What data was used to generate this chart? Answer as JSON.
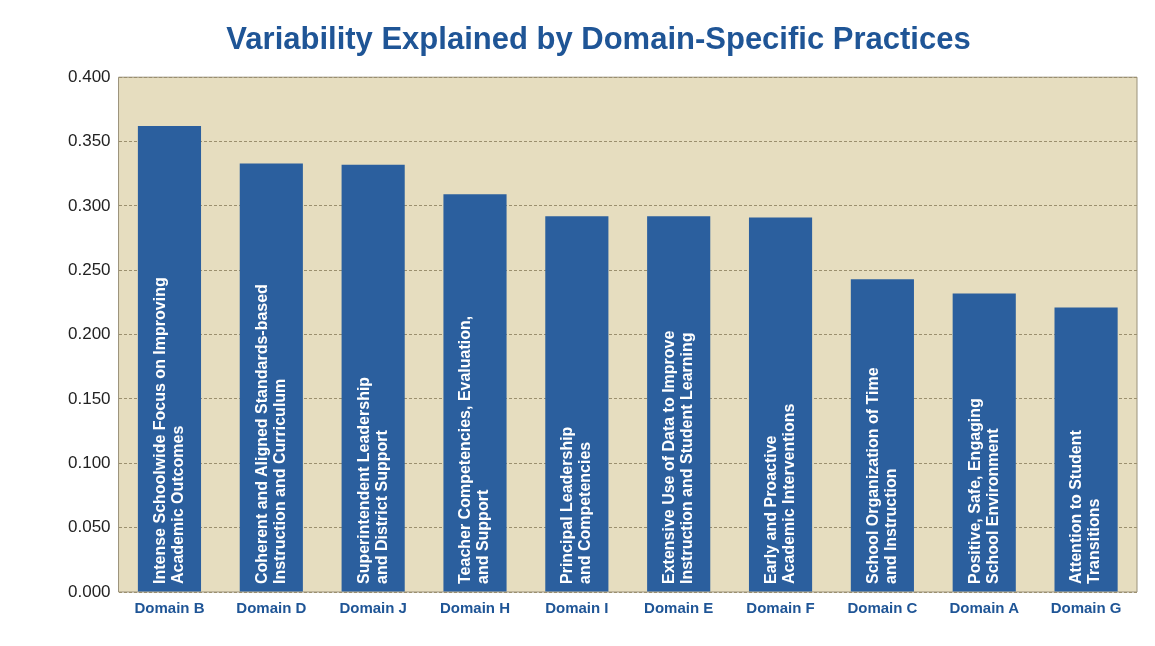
{
  "chart_data": {
    "type": "bar",
    "title": "Variability Explained by Domain-Specific Practices",
    "categories": [
      "Domain B",
      "Domain D",
      "Domain J",
      "Domain H",
      "Domain I",
      "Domain E",
      "Domain F",
      "Domain C",
      "Domain A",
      "Domain G"
    ],
    "values": [
      0.362,
      0.333,
      0.332,
      0.309,
      0.292,
      0.292,
      0.291,
      0.243,
      0.232,
      0.221
    ],
    "color": "#2b5f9e",
    "ylim": [
      0,
      0.4
    ],
    "yticks": [
      {
        "value": 0,
        "label": "0.000"
      },
      {
        "value": 0.05,
        "label": "0.050"
      },
      {
        "value": 0.1,
        "label": "0.100"
      },
      {
        "value": 0.15,
        "label": "0.150"
      },
      {
        "value": 0.2,
        "label": "0.200"
      },
      {
        "value": 0.25,
        "label": "0.250"
      },
      {
        "value": 0.3,
        "label": "0.300"
      },
      {
        "value": 0.35,
        "label": "0.350"
      },
      {
        "value": 0.4,
        "label": "0.400"
      }
    ],
    "grid": "y",
    "annotations": [
      {
        "text": "Intense Schoolwide Focus on Improving\nAcademic Outcomes",
        "x": "Domain B",
        "y": 0
      },
      {
        "text": "Coherent and Aligned Standards-based\nInstruction and Curriculum",
        "x": "Domain D",
        "y": 0
      },
      {
        "text": "Superintendent Leadership\nand District Support",
        "x": "Domain J",
        "y": 0
      },
      {
        "text": "Teacher Competencies, Evaluation,\nand Support",
        "x": "Domain H",
        "y": 0
      },
      {
        "text": "Principal Leadership\nand Competencies",
        "x": "Domain I",
        "y": 0
      },
      {
        "text": "Extensive Use of Data to Improve\nInstruction and Student Learning",
        "x": "Domain E",
        "y": 0
      },
      {
        "text": "Early and Proactive\nAcademic Interventions",
        "x": "Domain F",
        "y": 0
      },
      {
        "text": "School Organization of Time\nand Instruction",
        "x": "Domain C",
        "y": 0
      },
      {
        "text": "Positive, Safe, Engaging\nSchool Environment",
        "x": "Domain A",
        "y": 0
      },
      {
        "text": "Attention to Student\nTransitions",
        "x": "Domain G",
        "y": 0
      }
    ]
  }
}
